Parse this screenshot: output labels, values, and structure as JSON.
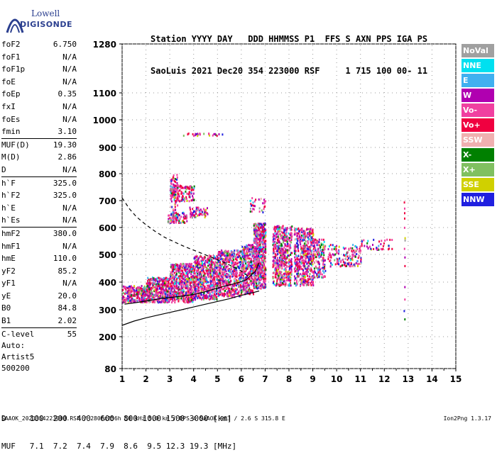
{
  "logo": {
    "line1": "Lowell",
    "line2": "DIGISONDE"
  },
  "header": {
    "line1": "Station YYYY DAY   DDD HHMMSS P1  FFS S AXN PPS IGA PS",
    "line2": "SaoLuis 2021 Dec20 354 223000 RSF     1 715 100 00- 11"
  },
  "params": [
    {
      "label": "foF2",
      "value": "6.750"
    },
    {
      "label": "foF1",
      "value": "N/A"
    },
    {
      "label": "foF1p",
      "value": "N/A"
    },
    {
      "label": "foE",
      "value": "N/A"
    },
    {
      "label": "foEp",
      "value": "0.35"
    },
    {
      "label": "fxI",
      "value": "N/A"
    },
    {
      "label": "foEs",
      "value": "N/A"
    },
    {
      "label": "fmin",
      "value": "3.10"
    },
    {
      "label": "MUF(D)",
      "value": "19.30"
    },
    {
      "label": "M(D)",
      "value": "2.86"
    },
    {
      "label": "D",
      "value": "N/A"
    },
    {
      "label": "h`F",
      "value": "325.0"
    },
    {
      "label": "h`F2",
      "value": "325.0"
    },
    {
      "label": "h`E",
      "value": "N/A"
    },
    {
      "label": "h`Es",
      "value": "N/A"
    },
    {
      "label": "hmF2",
      "value": "380.0"
    },
    {
      "label": "hmF1",
      "value": "N/A"
    },
    {
      "label": "hmE",
      "value": "110.0"
    },
    {
      "label": "yF2",
      "value": "85.2"
    },
    {
      "label": "yF1",
      "value": "N/A"
    },
    {
      "label": "yE",
      "value": "20.0"
    },
    {
      "label": "B0",
      "value": "84.8"
    },
    {
      "label": "B1",
      "value": "2.02"
    },
    {
      "label": "C-level",
      "value": "55"
    }
  ],
  "auto": {
    "line1": "Auto:",
    "line2": "Artist5",
    "line3": "500200"
  },
  "legend": [
    {
      "label": "NoVal",
      "color": "#a0a0a0"
    },
    {
      "label": "NNE",
      "color": "#00e0f0"
    },
    {
      "label": "E",
      "color": "#40b0f0"
    },
    {
      "label": "W",
      "color": "#b000b0"
    },
    {
      "label": "Vo-",
      "color": "#f040a0"
    },
    {
      "label": "Vo+",
      "color": "#f00040"
    },
    {
      "label": "SSW",
      "color": "#f0b0b0"
    },
    {
      "label": "X-",
      "color": "#008000"
    },
    {
      "label": "X+",
      "color": "#80c060"
    },
    {
      "label": "SSE",
      "color": "#d0d000"
    },
    {
      "label": "NNW",
      "color": "#2020e0"
    }
  ],
  "muf_table": {
    "d_line": "D     100  200  400  600  800 1000 1500 3000 [km]",
    "muf_line": "MUF   7.1  7.2  7.4  7.9  8.6  9.5 12.3 19.3 [MHz]"
  },
  "footer": {
    "left": "SAAOK_2021354223000.RSF / 280fx256h 50 kHz 5.0 km / DPS-4 SAAOK 903 / 2.6 S 315.8 E",
    "right": "Ion2Png 1.3.17"
  },
  "chart_data": {
    "type": "scatter",
    "x_ticks": [
      "1",
      "2",
      "3",
      "4",
      "5",
      "6",
      "7",
      "8",
      "9",
      "10",
      "11",
      "12",
      "13",
      "14",
      "15"
    ],
    "y_ticks": [
      "80",
      "200",
      "300",
      "400",
      "500",
      "600",
      "700",
      "800",
      "900",
      "1000",
      "1100",
      "1280"
    ],
    "xlim": [
      1,
      15
    ],
    "ylim": [
      80,
      1280
    ],
    "series": [
      {
        "name": "",
        "style": "dashed",
        "x": [
          1.0,
          1.3,
          1.6,
          2.0,
          2.4,
          2.8,
          3.2,
          3.6,
          4.0,
          4.4,
          4.8,
          5.2,
          5.6,
          6.0,
          6.3
        ],
        "y": [
          710,
          670,
          640,
          610,
          585,
          563,
          546,
          530,
          516,
          502,
          488,
          474,
          458,
          440,
          420
        ]
      },
      {
        "name": "",
        "style": "solid",
        "x": [
          1.0,
          1.5,
          2.0,
          2.5,
          3.0,
          3.5,
          4.0,
          4.5,
          5.0,
          5.5,
          6.0,
          6.5,
          6.75
        ],
        "y": [
          242,
          258,
          270,
          280,
          290,
          300,
          310,
          320,
          330,
          340,
          352,
          362,
          368
        ]
      },
      {
        "name": "",
        "style": "solid",
        "x": [
          1.1,
          1.6,
          2.1,
          2.6,
          3.1,
          3.6,
          4.1,
          4.6,
          5.0,
          5.4,
          5.8,
          6.2,
          6.6,
          6.75
        ],
        "y": [
          320,
          326,
          333,
          340,
          345,
          350,
          357,
          368,
          378,
          388,
          396,
          408,
          440,
          470
        ]
      }
    ]
  }
}
